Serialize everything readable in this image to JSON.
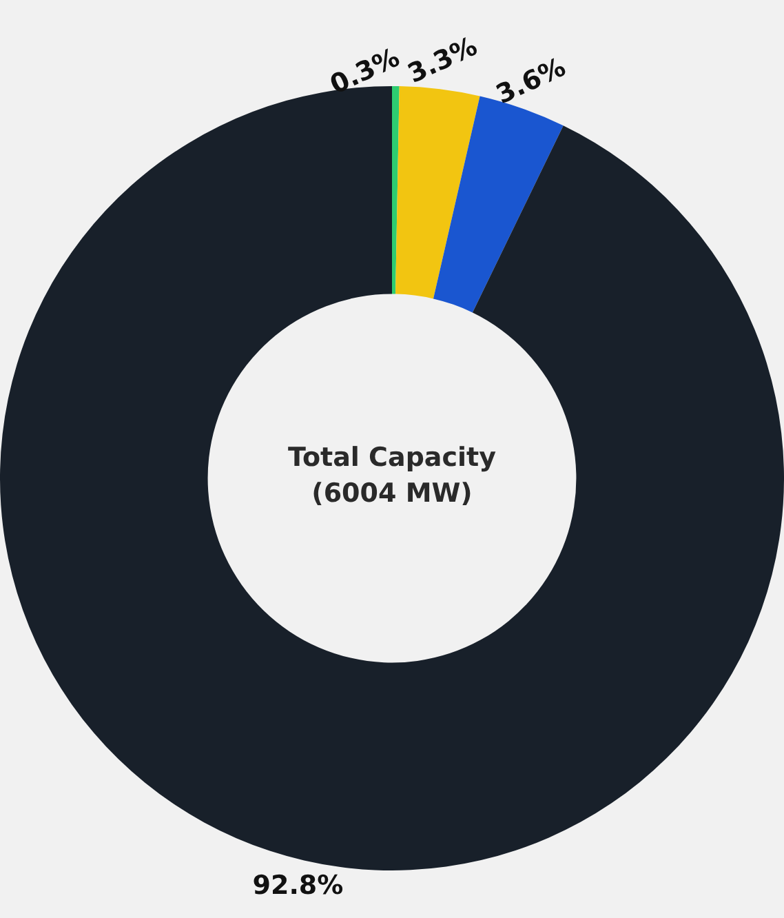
{
  "chart_data": {
    "type": "donut",
    "title": "Total Capacity",
    "subtitle": "(6004 MW)",
    "categories": [
      null,
      null,
      null,
      null
    ],
    "values": [
      0.3,
      3.3,
      3.6,
      92.8
    ],
    "colors": [
      "#2ecc71",
      "#f2c511",
      "#1a56d0",
      "#18202a"
    ],
    "value_labels": [
      "0.3%",
      "3.3%",
      "3.6%",
      "92.8%"
    ],
    "legend": false
  }
}
